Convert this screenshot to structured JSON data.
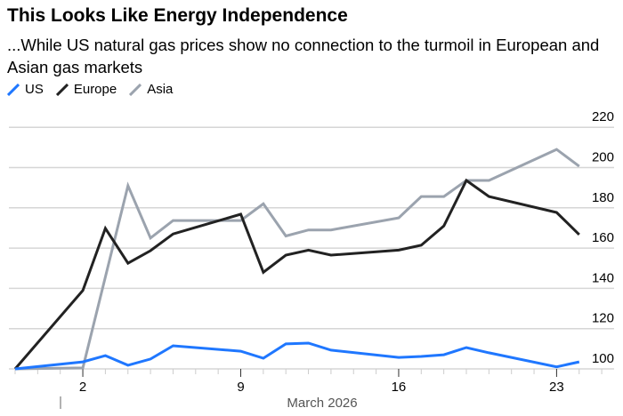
{
  "title": "This Looks Like Energy Independence",
  "subtitle": "...While US natural gas prices show no connection to the turmoil in European and Asian gas markets",
  "chart_data": {
    "type": "line",
    "xlabel": "March 2026",
    "x_ticks": [
      "2",
      "9",
      "16",
      "23"
    ],
    "y_ticks": [
      "100",
      "120",
      "140",
      "160",
      "180",
      "200",
      "220"
    ],
    "ylim": [
      100,
      220
    ],
    "grid": true,
    "y_axis_side": "right",
    "legend_placement": "top-left",
    "x": [
      "Feb 27",
      "Mar 2",
      "Mar 3",
      "Mar 4",
      "Mar 5",
      "Mar 6",
      "Mar 9",
      "Mar 10",
      "Mar 11",
      "Mar 12",
      "Mar 13",
      "Mar 16",
      "Mar 17",
      "Mar 18",
      "Mar 19",
      "Mar 20",
      "Mar 23",
      "Mar 24"
    ],
    "series": [
      {
        "name": "US",
        "color": "#1f77ff",
        "values": [
          100,
          103.5,
          106.6,
          101.8,
          104.9,
          111.5,
          108.8,
          105.3,
          112.4,
          112.8,
          109.3,
          105.7,
          106.2,
          107,
          110.6,
          108,
          101,
          103.5
        ]
      },
      {
        "name": "Europe",
        "color": "#222222",
        "values": [
          100,
          139,
          169.8,
          152.5,
          158.7,
          167,
          176.8,
          148,
          156.5,
          159,
          156.5,
          159,
          161.4,
          171,
          193.6,
          185.6,
          177.7,
          166.7
        ]
      },
      {
        "name": "Asia",
        "color": "#9ba3ae",
        "values": [
          100,
          100.5,
          null,
          191,
          165,
          173.7,
          173.7,
          182,
          166,
          169,
          169,
          175,
          185.6,
          185.6,
          193.6,
          193.6,
          209,
          200.6
        ]
      }
    ]
  }
}
